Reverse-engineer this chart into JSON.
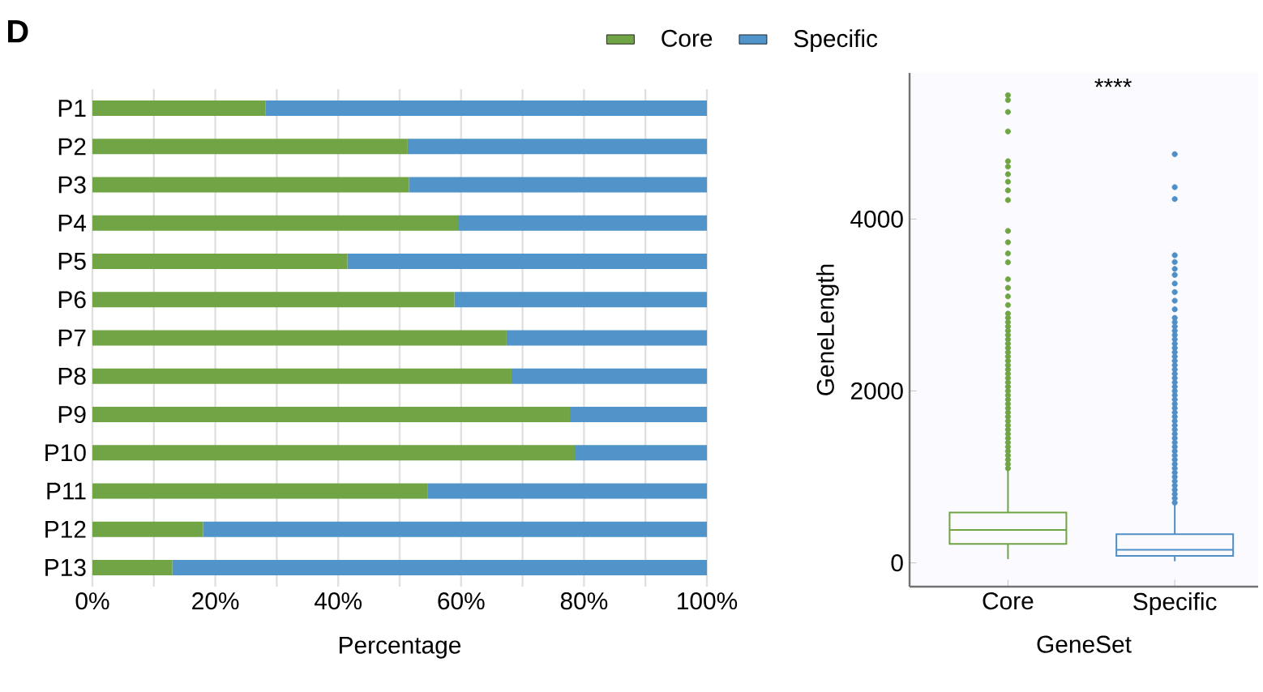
{
  "chart_data": [
    {
      "type": "bar",
      "orientation": "horizontal",
      "stacked": true,
      "categories": [
        "P1",
        "P2",
        "P3",
        "P4",
        "P5",
        "P6",
        "P7",
        "P8",
        "P9",
        "P10",
        "P11",
        "P12",
        "P13"
      ],
      "series": [
        {
          "name": "Core",
          "color": "#70a444",
          "values": [
            28.2,
            51.3,
            51.5,
            59.5,
            41.5,
            58.9,
            67.4,
            68.2,
            77.7,
            78.5,
            54.6,
            18.0,
            13.0
          ]
        },
        {
          "name": "Specific",
          "color": "#5194c9",
          "values": [
            71.8,
            48.7,
            48.5,
            40.5,
            58.5,
            41.1,
            32.6,
            31.8,
            22.3,
            21.5,
            45.4,
            82.0,
            87.0
          ]
        }
      ],
      "xlim": [
        0,
        100
      ],
      "xticks": [
        {
          "value": 0,
          "label": "0%"
        },
        {
          "value": 10,
          "label": null
        },
        {
          "value": 20,
          "label": "20%"
        },
        {
          "value": 30,
          "label": null
        },
        {
          "value": 40,
          "label": "40%"
        },
        {
          "value": 50,
          "label": null
        },
        {
          "value": 60,
          "label": "60%"
        },
        {
          "value": 70,
          "label": null
        },
        {
          "value": 80,
          "label": "80%"
        },
        {
          "value": 90,
          "label": null
        },
        {
          "value": 100,
          "label": "100%"
        }
      ],
      "xlabel": "Percentage",
      "grid": "x",
      "legend": "top",
      "annotations": [
        "D"
      ]
    },
    {
      "type": "box",
      "categories": [
        "Core",
        "Specific"
      ],
      "colors": [
        "#70a444",
        "#4f8fc6"
      ],
      "boxes": [
        {
          "low": 44,
          "q1": 220,
          "median": 384,
          "q3": 585,
          "high": 1088,
          "outliers": [
            5441,
            5384,
            5246,
            5019,
            4673,
            4610,
            4522,
            4434,
            4334,
            4221,
            3862,
            3730,
            3600,
            3497,
            3300,
            3200,
            3100,
            3000,
            2900,
            2850,
            2800,
            2750,
            2700,
            2650,
            2600,
            2550,
            2500,
            2450,
            2400,
            2350,
            2300,
            2250,
            2200,
            2150,
            2100,
            2050,
            2000,
            1950,
            1900,
            1850,
            1800,
            1750,
            1700,
            1650,
            1600,
            1550,
            1500,
            1450,
            1400,
            1350,
            1300,
            1250,
            1200,
            1150,
            1100
          ]
        },
        {
          "low": 19,
          "q1": 82,
          "median": 151,
          "q3": 333,
          "high": 679,
          "outliers": [
            4755,
            4371,
            4233,
            3579,
            3500,
            3420,
            3350,
            3250,
            3150,
            3050,
            2950,
            2850,
            2800,
            2750,
            2700,
            2650,
            2600,
            2550,
            2500,
            2450,
            2400,
            2350,
            2300,
            2250,
            2200,
            2150,
            2100,
            2050,
            2000,
            1950,
            1900,
            1850,
            1800,
            1750,
            1700,
            1650,
            1600,
            1550,
            1500,
            1450,
            1400,
            1350,
            1300,
            1250,
            1200,
            1150,
            1100,
            1050,
            1000,
            950,
            900,
            850,
            800,
            750,
            700
          ]
        }
      ],
      "xlabel": "GeneSet",
      "ylabel": "GeneLength",
      "ylim": [
        -277,
        5700
      ],
      "yticks": [
        0,
        2000,
        4000
      ],
      "annotations": [
        "****"
      ]
    }
  ]
}
